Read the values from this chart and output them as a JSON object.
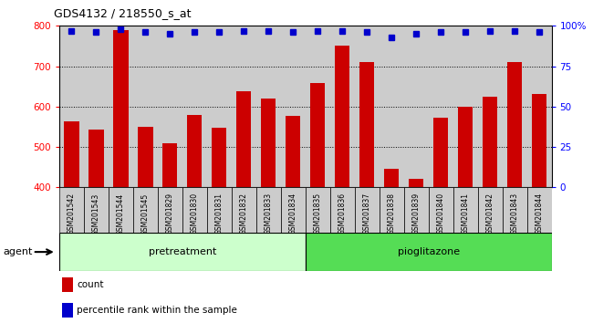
{
  "title": "GDS4132 / 218550_s_at",
  "categories": [
    "GSM201542",
    "GSM201543",
    "GSM201544",
    "GSM201545",
    "GSM201829",
    "GSM201830",
    "GSM201831",
    "GSM201832",
    "GSM201833",
    "GSM201834",
    "GSM201835",
    "GSM201836",
    "GSM201837",
    "GSM201838",
    "GSM201839",
    "GSM201840",
    "GSM201841",
    "GSM201842",
    "GSM201843",
    "GSM201844"
  ],
  "counts": [
    563,
    543,
    790,
    549,
    510,
    580,
    548,
    638,
    620,
    578,
    659,
    752,
    710,
    445,
    420,
    572,
    600,
    625,
    710,
    632
  ],
  "percentile_ranks": [
    97,
    96,
    98,
    96,
    95,
    96,
    96,
    97,
    97,
    96,
    97,
    97,
    96,
    93,
    95,
    96,
    96,
    97,
    97,
    96
  ],
  "pretreatment_count": 10,
  "pioglitazone_count": 10,
  "ylim_left": [
    400,
    800
  ],
  "ylim_right": [
    0,
    100
  ],
  "yticks_left": [
    400,
    500,
    600,
    700,
    800
  ],
  "yticks_right": [
    0,
    25,
    50,
    75,
    100
  ],
  "bar_color": "#cc0000",
  "dot_color": "#0000cc",
  "pretreatment_color": "#ccffcc",
  "pioglitazone_color": "#55dd55",
  "bg_color": "#cccccc",
  "tick_label_bg": "#cccccc",
  "grid_color": "#000000"
}
